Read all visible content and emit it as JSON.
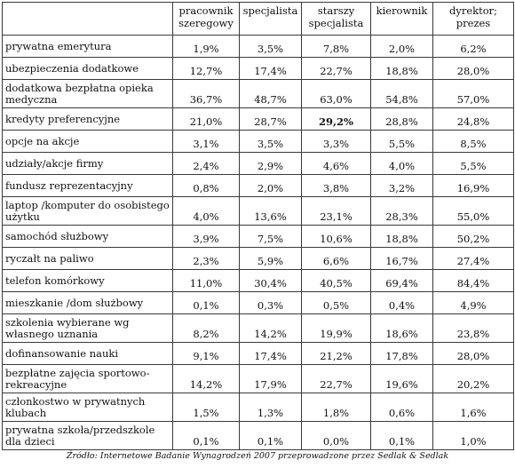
{
  "table": {
    "headers": [
      "",
      "pracownik szeregowy",
      "specjalista",
      "starszy specjalista",
      "kierownik",
      "dyrektor; prezes"
    ],
    "rows": [
      {
        "label": "prywatna emerytura",
        "values": [
          "1,9%",
          "3,5%",
          "7,8%",
          "2,0%",
          "6,2%"
        ]
      },
      {
        "label": "ubezpieczenia dodatkowe",
        "values": [
          "12,7%",
          "17,4%",
          "22,7%",
          "18,8%",
          "28,0%"
        ]
      },
      {
        "label": "dodatkowa bezpłatna opieka medyczna",
        "values": [
          "36,7%",
          "48,7%",
          "63,0%",
          "54,8%",
          "57,0%"
        ]
      },
      {
        "label": "kredyty preferencyjne",
        "values": [
          "21,0%",
          "28,7%",
          "29,2%",
          "28,8%",
          "24,8%"
        ],
        "bold_col": 2
      },
      {
        "label": "opcje na akcje",
        "values": [
          "3,1%",
          "3,5%",
          "3,3%",
          "5,5%",
          "8,5%"
        ]
      },
      {
        "label": "udziały/akcje firmy",
        "values": [
          "2,4%",
          "2,9%",
          "4,6%",
          "4,0%",
          "5,5%"
        ]
      },
      {
        "label": "fundusz reprezentacyjny",
        "values": [
          "0,8%",
          "2,0%",
          "3,8%",
          "3,2%",
          "16,9%"
        ]
      },
      {
        "label": "laptop /komputer do osobistego użytku",
        "values": [
          "4,0%",
          "13,6%",
          "23,1%",
          "28,3%",
          "55,0%"
        ]
      },
      {
        "label": "samochód służbowy",
        "values": [
          "3,9%",
          "7,5%",
          "10,6%",
          "18,8%",
          "50,2%"
        ]
      },
      {
        "label": "ryczałt na paliwo",
        "values": [
          "2,3%",
          "5,9%",
          "6,6%",
          "16,7%",
          "27,4%"
        ]
      },
      {
        "label": "telefon komórkowy",
        "values": [
          "11,0%",
          "30,4%",
          "40,5%",
          "69,4%",
          "84,4%"
        ]
      },
      {
        "label": "mieszkanie /dom służbowy",
        "values": [
          "0,1%",
          "0,3%",
          "0,5%",
          "0,4%",
          "4,9%"
        ]
      },
      {
        "label": "szkolenia wybierane wg własnego uznania",
        "values": [
          "8,2%",
          "14,2%",
          "19,9%",
          "18,6%",
          "23,8%"
        ]
      },
      {
        "label": "dofinansowanie nauki",
        "values": [
          "9,1%",
          "17,4%",
          "21,2%",
          "17,8%",
          "28,0%"
        ]
      },
      {
        "label": "bezpłatne zajęcia sportowo-rekreacyjne",
        "values": [
          "14,2%",
          "17,9%",
          "22,7%",
          "19,6%",
          "20,2%"
        ]
      },
      {
        "label": "członkostwo w prywatnych klubach",
        "values": [
          "1,5%",
          "1,3%",
          "1,8%",
          "0,6%",
          "1,6%"
        ]
      },
      {
        "label": "prywatna szkoła/przedszkole dla dzieci",
        "values": [
          "0,1%",
          "0,1%",
          "0,0%",
          "0,1%",
          "1,0%"
        ]
      }
    ]
  },
  "source": "Źródło: Internetowe Badanie Wynagrodzeń 2007 przeprowadzone przez Sedlak & Sedlak"
}
